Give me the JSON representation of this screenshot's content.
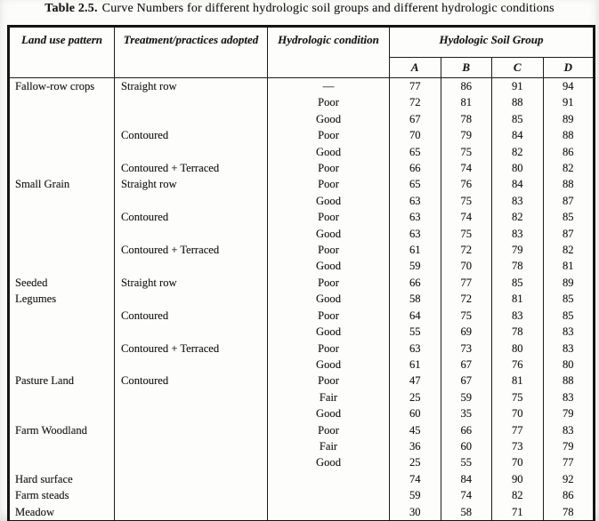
{
  "page": {
    "title_prefix": "Table 2.5.",
    "title_text": "Curve Numbers for different hydrologic soil groups and different hydrologic conditions"
  },
  "colors": {
    "ink": "#1a1a1a",
    "paper": "#fcfcfa",
    "border": "#141414"
  },
  "table": {
    "headers": {
      "land_use": "Land use pattern",
      "treatment": "Treatment/practices adopted",
      "condition": "Hydrologic condition",
      "soil_group": "Hydologic Soil Group",
      "groups": [
        "A",
        "B",
        "C",
        "D"
      ]
    },
    "rows": [
      {
        "land_use": "Fallow-row crops",
        "treatment": "Straight row",
        "condition": "—",
        "values": [
          77,
          86,
          91,
          94
        ]
      },
      {
        "land_use": "",
        "treatment": "",
        "condition": "Poor",
        "values": [
          72,
          81,
          88,
          91
        ]
      },
      {
        "land_use": "",
        "treatment": "",
        "condition": "Good",
        "values": [
          67,
          78,
          85,
          89
        ]
      },
      {
        "land_use": "",
        "treatment": "Contoured",
        "condition": "Poor",
        "values": [
          70,
          79,
          84,
          88
        ]
      },
      {
        "land_use": "",
        "treatment": "",
        "condition": "Good",
        "values": [
          65,
          75,
          82,
          86
        ]
      },
      {
        "land_use": "",
        "treatment": "Contoured + Terraced",
        "condition": "Poor",
        "values": [
          66,
          74,
          80,
          82
        ]
      },
      {
        "land_use": "Small Grain",
        "treatment": "Straight row",
        "condition": "Poor",
        "values": [
          65,
          76,
          84,
          88
        ]
      },
      {
        "land_use": "",
        "treatment": "",
        "condition": "Good",
        "values": [
          63,
          75,
          83,
          87
        ]
      },
      {
        "land_use": "",
        "treatment": "Contoured",
        "condition": "Poor",
        "values": [
          63,
          74,
          82,
          85
        ]
      },
      {
        "land_use": "",
        "treatment": "",
        "condition": "Good",
        "values": [
          63,
          75,
          83,
          87
        ]
      },
      {
        "land_use": "",
        "treatment": "Contoured + Terraced",
        "condition": "Poor",
        "values": [
          61,
          72,
          79,
          82
        ]
      },
      {
        "land_use": "",
        "treatment": "",
        "condition": "Good",
        "values": [
          59,
          70,
          78,
          81
        ]
      },
      {
        "land_use": "Seeded",
        "treatment": "Straight row",
        "condition": "Poor",
        "values": [
          66,
          77,
          85,
          89
        ]
      },
      {
        "land_use": "Legumes",
        "treatment": "",
        "condition": "Good",
        "values": [
          58,
          72,
          81,
          85
        ]
      },
      {
        "land_use": "",
        "treatment": "Contoured",
        "condition": "Poor",
        "values": [
          64,
          75,
          83,
          85
        ]
      },
      {
        "land_use": "",
        "treatment": "",
        "condition": "Good",
        "values": [
          55,
          69,
          78,
          83
        ]
      },
      {
        "land_use": "",
        "treatment": "Contoured + Terraced",
        "condition": "Poor",
        "values": [
          63,
          73,
          80,
          83
        ]
      },
      {
        "land_use": "",
        "treatment": "",
        "condition": "Good",
        "values": [
          61,
          67,
          76,
          80
        ]
      },
      {
        "land_use": "Pasture Land",
        "treatment": "Contoured",
        "condition": "Poor",
        "values": [
          47,
          67,
          81,
          88
        ]
      },
      {
        "land_use": "",
        "treatment": "",
        "condition": "Fair",
        "values": [
          25,
          59,
          75,
          83
        ]
      },
      {
        "land_use": "",
        "treatment": "",
        "condition": "Good",
        "values": [
          60,
          35,
          70,
          79
        ]
      },
      {
        "land_use": "Farm Woodland",
        "treatment": "",
        "condition": "Poor",
        "values": [
          45,
          66,
          77,
          83
        ]
      },
      {
        "land_use": "",
        "treatment": "",
        "condition": "Fair",
        "values": [
          36,
          60,
          73,
          79
        ]
      },
      {
        "land_use": "",
        "treatment": "",
        "condition": "Good",
        "values": [
          25,
          55,
          70,
          77
        ]
      },
      {
        "land_use": "Hard surface",
        "treatment": "",
        "condition": "",
        "values": [
          74,
          84,
          90,
          92
        ]
      },
      {
        "land_use": "Farm steads",
        "treatment": "",
        "condition": "",
        "values": [
          59,
          74,
          82,
          86
        ]
      },
      {
        "land_use": "Meadow",
        "treatment": "",
        "condition": "",
        "values": [
          30,
          58,
          71,
          78
        ]
      }
    ]
  }
}
